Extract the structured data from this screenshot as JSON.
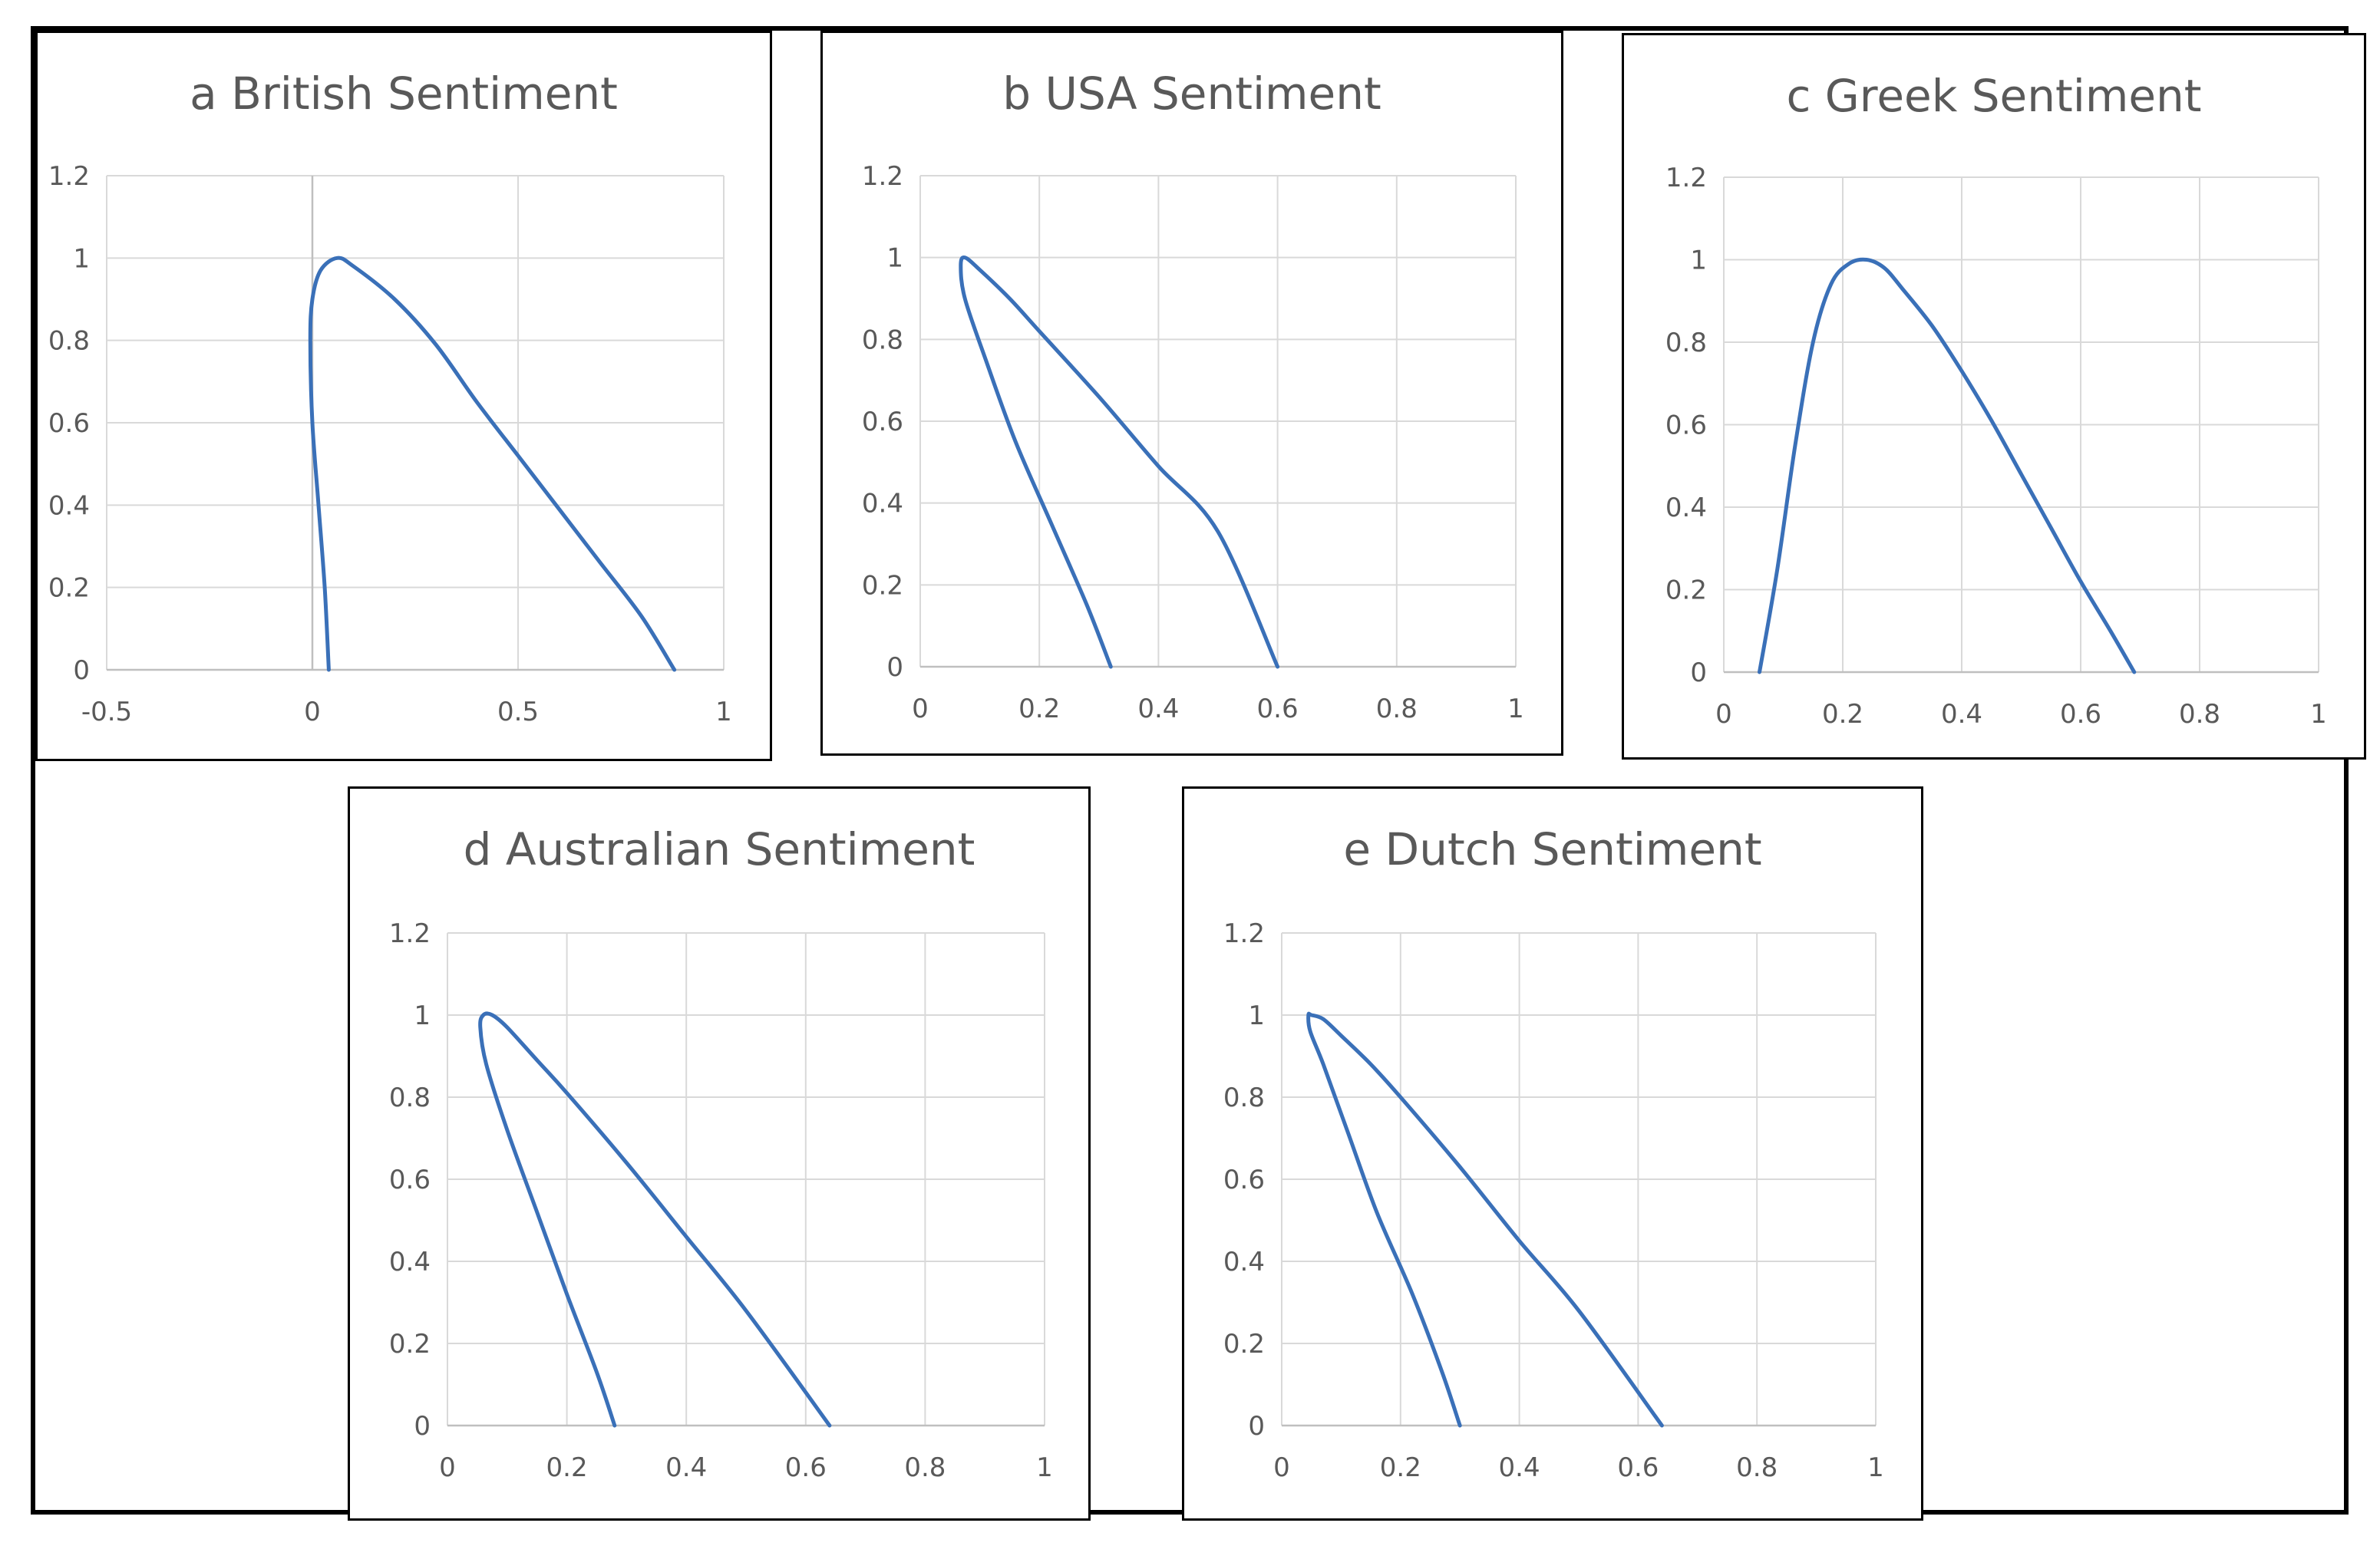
{
  "chart_data": [
    {
      "id": "a",
      "type": "line",
      "title": "a British Sentiment",
      "xlim": [
        -0.5,
        1
      ],
      "ylim": [
        0,
        1.2
      ],
      "xticks": [
        -0.5,
        0,
        0.5,
        1
      ],
      "xtick_labels": [
        "-0.5",
        "0",
        "0.5",
        "1"
      ],
      "yticks": [
        0,
        0.2,
        0.4,
        0.6,
        0.8,
        1,
        1.2
      ],
      "ytick_labels": [
        "0",
        "0.2",
        "0.4",
        "0.6",
        "0.8",
        "1",
        "1.2"
      ],
      "series": [
        {
          "name": "",
          "color": "#3a70b8",
          "x": [
            0.04,
            0.03,
            0.015,
            0.0,
            -0.005,
            0.0,
            0.02,
            0.06,
            0.1,
            0.2,
            0.3,
            0.4,
            0.5,
            0.6,
            0.7,
            0.8,
            0.88
          ],
          "y": [
            0.0,
            0.2,
            0.4,
            0.6,
            0.8,
            0.9,
            0.97,
            1.0,
            0.98,
            0.9,
            0.79,
            0.65,
            0.52,
            0.39,
            0.26,
            0.13,
            0.0
          ]
        }
      ]
    },
    {
      "id": "b",
      "type": "line",
      "title": "b USA Sentiment",
      "xlim": [
        0,
        1
      ],
      "ylim": [
        0,
        1.2
      ],
      "xticks": [
        0,
        0.2,
        0.4,
        0.6,
        0.8,
        1
      ],
      "xtick_labels": [
        "0",
        "0.2",
        "0.4",
        "0.6",
        "0.8",
        "1"
      ],
      "yticks": [
        0,
        0.2,
        0.4,
        0.6,
        0.8,
        1,
        1.2
      ],
      "ytick_labels": [
        "0",
        "0.2",
        "0.4",
        "0.6",
        "0.8",
        "1",
        "1.2"
      ],
      "series": [
        {
          "name": "",
          "color": "#3a70b8",
          "x": [
            0.32,
            0.28,
            0.22,
            0.16,
            0.11,
            0.075,
            0.068,
            0.075,
            0.1,
            0.15,
            0.2,
            0.3,
            0.4,
            0.5,
            0.6
          ],
          "y": [
            0.0,
            0.15,
            0.35,
            0.55,
            0.75,
            0.9,
            0.98,
            1.0,
            0.97,
            0.9,
            0.82,
            0.66,
            0.49,
            0.33,
            0.0
          ]
        }
      ]
    },
    {
      "id": "c",
      "type": "line",
      "title": "c Greek Sentiment",
      "xlim": [
        0,
        1
      ],
      "ylim": [
        0,
        1.2
      ],
      "xticks": [
        0,
        0.2,
        0.4,
        0.6,
        0.8,
        1
      ],
      "xtick_labels": [
        "0",
        "0.2",
        "0.4",
        "0.6",
        "0.8",
        "1"
      ],
      "yticks": [
        0,
        0.2,
        0.4,
        0.6,
        0.8,
        1,
        1.2
      ],
      "ytick_labels": [
        "0",
        "0.2",
        "0.4",
        "0.6",
        "0.8",
        "1",
        "1.2"
      ],
      "series": [
        {
          "name": "",
          "color": "#3a70b8",
          "x": [
            0.06,
            0.09,
            0.12,
            0.15,
            0.18,
            0.21,
            0.24,
            0.27,
            0.3,
            0.35,
            0.4,
            0.45,
            0.5,
            0.55,
            0.6,
            0.65,
            0.69
          ],
          "y": [
            0.0,
            0.25,
            0.55,
            0.8,
            0.94,
            0.99,
            1.0,
            0.98,
            0.93,
            0.84,
            0.73,
            0.61,
            0.48,
            0.35,
            0.22,
            0.1,
            0.0
          ]
        }
      ]
    },
    {
      "id": "d",
      "type": "line",
      "title": "d Australian Sentiment",
      "xlim": [
        0,
        1
      ],
      "ylim": [
        0,
        1.2
      ],
      "xticks": [
        0,
        0.2,
        0.4,
        0.6,
        0.8,
        1
      ],
      "xtick_labels": [
        "0",
        "0.2",
        "0.4",
        "0.6",
        "0.8",
        "1"
      ],
      "yticks": [
        0,
        0.2,
        0.4,
        0.6,
        0.8,
        1,
        1.2
      ],
      "ytick_labels": [
        "0",
        "0.2",
        "0.4",
        "0.6",
        "0.8",
        "1",
        "1.2"
      ],
      "series": [
        {
          "name": "",
          "color": "#3a70b8",
          "x": [
            0.28,
            0.25,
            0.2,
            0.15,
            0.1,
            0.065,
            0.055,
            0.06,
            0.075,
            0.1,
            0.15,
            0.2,
            0.3,
            0.4,
            0.5,
            0.64
          ],
          "y": [
            0.0,
            0.13,
            0.32,
            0.52,
            0.72,
            0.88,
            0.97,
            1.0,
            1.0,
            0.97,
            0.89,
            0.81,
            0.64,
            0.46,
            0.28,
            0.0
          ]
        }
      ]
    },
    {
      "id": "e",
      "type": "line",
      "title": "e Dutch Sentiment",
      "xlim": [
        0,
        1
      ],
      "ylim": [
        0,
        1.2
      ],
      "xticks": [
        0,
        0.2,
        0.4,
        0.6,
        0.8,
        1
      ],
      "xtick_labels": [
        "0",
        "0.2",
        "0.4",
        "0.6",
        "0.8",
        "1"
      ],
      "yticks": [
        0,
        0.2,
        0.4,
        0.6,
        0.8,
        1,
        1.2
      ],
      "ytick_labels": [
        "0",
        "0.2",
        "0.4",
        "0.6",
        "0.8",
        "1",
        "1.2"
      ],
      "series": [
        {
          "name": "",
          "color": "#3a70b8",
          "x": [
            0.3,
            0.27,
            0.22,
            0.16,
            0.11,
            0.07,
            0.048,
            0.045,
            0.05,
            0.07,
            0.1,
            0.15,
            0.2,
            0.3,
            0.4,
            0.5,
            0.64
          ],
          "y": [
            0.0,
            0.13,
            0.32,
            0.52,
            0.72,
            0.88,
            0.96,
            1.0,
            1.0,
            0.99,
            0.95,
            0.88,
            0.8,
            0.63,
            0.45,
            0.28,
            0.0
          ]
        }
      ]
    }
  ]
}
